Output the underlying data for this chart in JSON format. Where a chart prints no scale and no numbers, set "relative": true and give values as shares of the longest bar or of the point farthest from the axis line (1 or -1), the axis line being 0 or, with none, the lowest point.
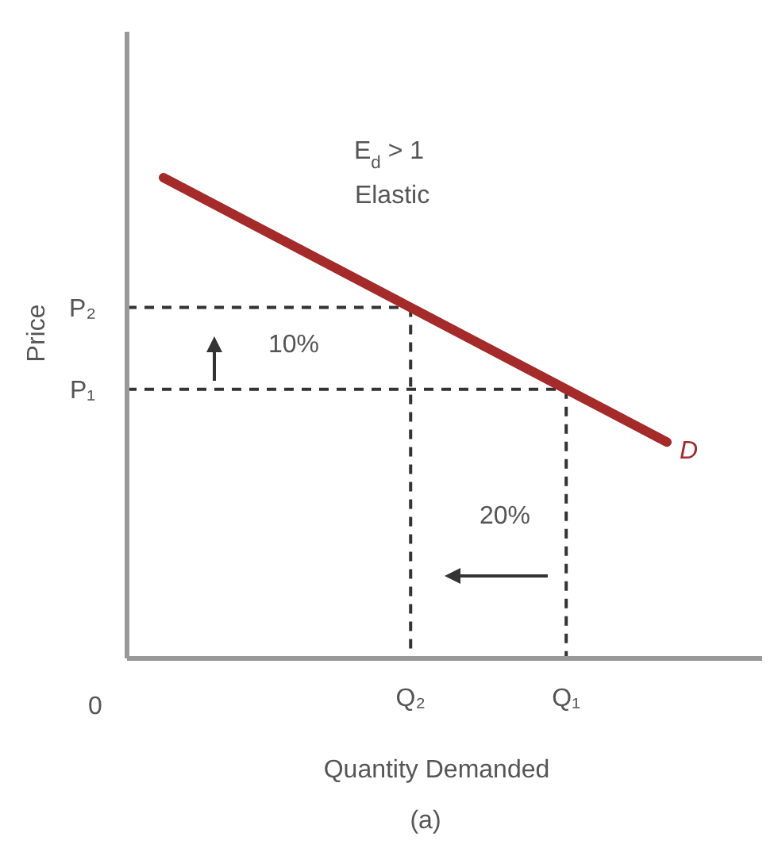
{
  "chart_data": {
    "type": "line",
    "relative": true,
    "xlabel": "Quantity Demanded",
    "ylabel": "Price",
    "categories": [
      null,
      null
    ],
    "series": [
      {
        "name": "D",
        "color": "#a52a2a",
        "values": [
          1,
          0.45
        ]
      }
    ],
    "ref_lines": [
      {
        "axis": "y",
        "value": 0.73,
        "label": "P₂",
        "line_style": "dashed"
      },
      {
        "axis": "y",
        "value": 0.56,
        "label": "P₁",
        "line_style": "dashed"
      }
    ],
    "annotations": [
      "E$_{d}$ > 1",
      "Elastic",
      "10%",
      "20%",
      "(a)",
      "0",
      "Q₂",
      "Q₁"
    ]
  }
}
